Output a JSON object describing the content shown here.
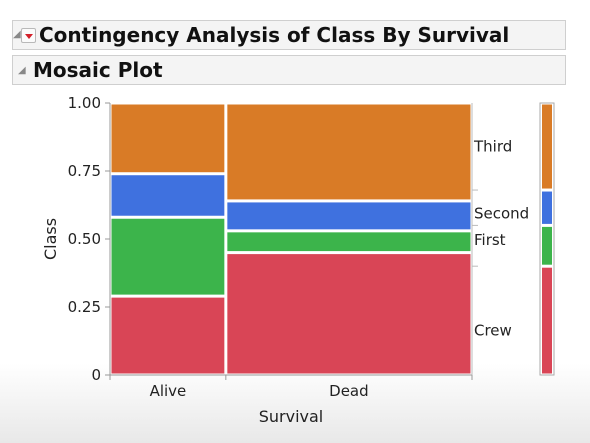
{
  "outline": {
    "report_title": "Contingency Analysis of Class By Survival",
    "section_title": "Mosaic Plot"
  },
  "colors": {
    "Crew": "#d94556",
    "First": "#3cb44b",
    "Second": "#3f71df",
    "Third": "#d97b26"
  },
  "icons": {
    "collapse_1": "disclosure-triangle-icon",
    "menu": "red-triangle-menu-icon",
    "collapse_2": "disclosure-triangle-icon"
  },
  "chart_data": {
    "type": "mosaic",
    "xlabel": "Survival",
    "ylabel": "Class",
    "yticks": [
      "0",
      "0.25",
      "0.50",
      "0.75",
      "1.00"
    ],
    "ytick_values": [
      0,
      0.25,
      0.5,
      0.75,
      1.0
    ],
    "ylim": [
      0,
      1
    ],
    "categories": [
      "Alive",
      "Dead"
    ],
    "column_widths": [
      0.32,
      0.68
    ],
    "levels": [
      "Crew",
      "First",
      "Second",
      "Third"
    ],
    "columns": [
      {
        "name": "Alive",
        "proportions": {
          "Crew": 0.29,
          "First": 0.29,
          "Second": 0.16,
          "Third": 0.26
        }
      },
      {
        "name": "Dead",
        "proportions": {
          "Crew": 0.45,
          "First": 0.08,
          "Second": 0.11,
          "Third": 0.36
        }
      }
    ],
    "overall_proportions": {
      "Crew": 0.4,
      "First": 0.15,
      "Second": 0.13,
      "Third": 0.32
    },
    "right_axis_labels": [
      "Third",
      "Second",
      "First",
      "Crew"
    ]
  }
}
